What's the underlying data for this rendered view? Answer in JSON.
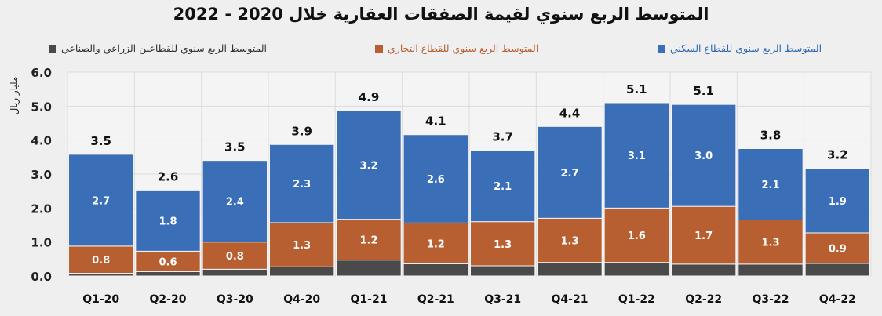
{
  "chart_data": {
    "type": "bar",
    "stacked": true,
    "title": "المتوسط الربع سنوي لقيمة الصفقات العقارية خلال 2020 - 2022",
    "ylabel": "مليار ريال",
    "xlabel": "",
    "ylim": [
      0,
      6
    ],
    "yticks": [
      "0.0",
      "1.0",
      "2.0",
      "3.0",
      "4.0",
      "5.0",
      "6.0"
    ],
    "grid": true,
    "legend_position": "top",
    "categories": [
      "Q1-20",
      "Q2-20",
      "Q3-20",
      "Q4-20",
      "Q1-21",
      "Q2-21",
      "Q3-21",
      "Q4-21",
      "Q1-22",
      "Q2-22",
      "Q3-22",
      "Q4-22"
    ],
    "series": [
      {
        "name": "المتوسط الربع سنوي للقطاعين الزراعي والصناعي",
        "color": "#4a4a4a",
        "values": [
          0.08,
          0.13,
          0.2,
          0.27,
          0.47,
          0.36,
          0.3,
          0.4,
          0.4,
          0.35,
          0.35,
          0.37
        ],
        "labeled": false
      },
      {
        "name": "المتوسط الربع سنوي للقطاع التجاري",
        "color": "#b85f31",
        "values": [
          0.8,
          0.6,
          0.8,
          1.3,
          1.2,
          1.2,
          1.3,
          1.3,
          1.6,
          1.7,
          1.3,
          0.9
        ],
        "labeled": true
      },
      {
        "name": "المتوسط الربع سنوي للقطاع السكني",
        "color": "#3a6fb7",
        "values": [
          2.7,
          1.8,
          2.4,
          2.3,
          3.2,
          2.6,
          2.1,
          2.7,
          3.1,
          3.0,
          2.1,
          1.9
        ],
        "labeled": true
      }
    ],
    "totals": [
      3.5,
      2.6,
      3.5,
      3.9,
      4.9,
      4.1,
      3.7,
      4.4,
      5.1,
      5.1,
      3.8,
      3.2
    ]
  }
}
